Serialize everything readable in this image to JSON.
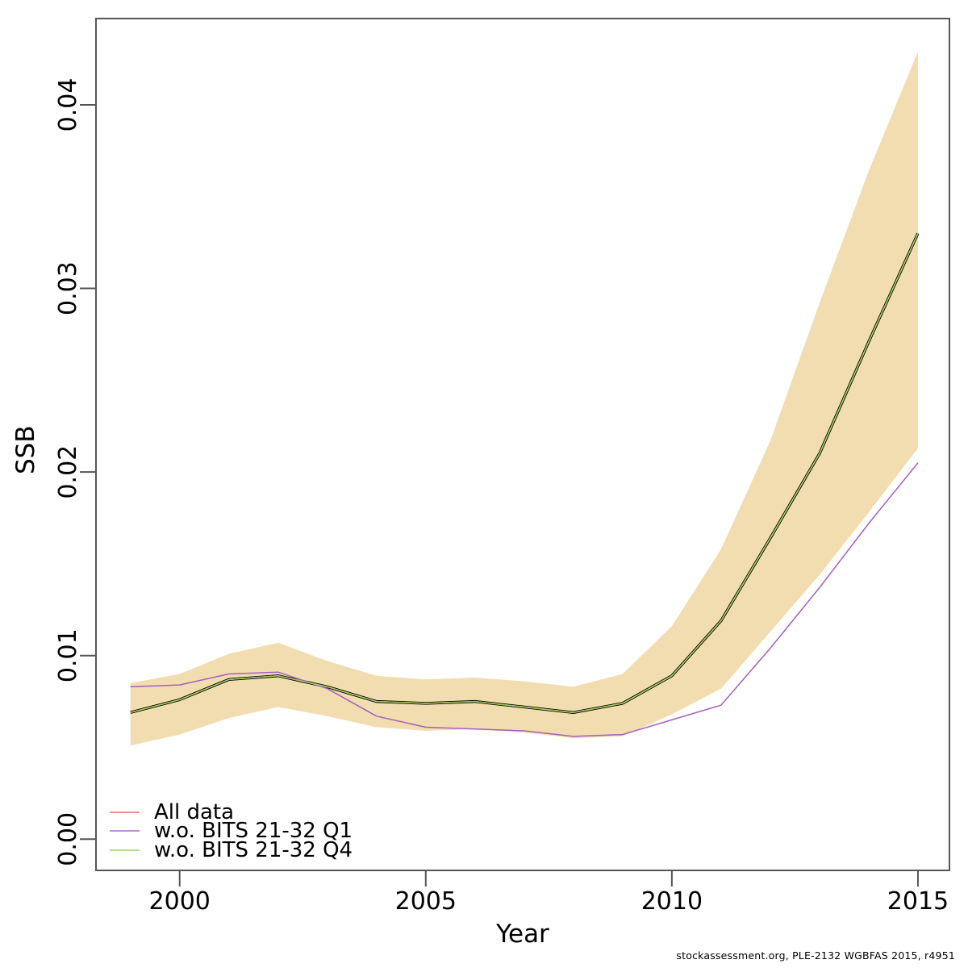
{
  "footer": "stockassessment.org, PLE-2132 WGBFAS 2015, r4951",
  "chart_data": {
    "type": "line",
    "title": "",
    "xlabel": "Year",
    "ylabel": "SSB",
    "grid": false,
    "legend_position": "bottom-left",
    "xlim": [
      1998.3,
      2015.64
    ],
    "ylim": [
      -0.0017,
      0.0447
    ],
    "x_ticks": [
      {
        "label": "2000",
        "value": 2000
      },
      {
        "label": "2005",
        "value": 2005
      },
      {
        "label": "2010",
        "value": 2010
      },
      {
        "label": "2015",
        "value": 2015
      }
    ],
    "y_ticks": [
      {
        "label": "0.00",
        "value": 0.0
      },
      {
        "label": "0.01",
        "value": 0.01
      },
      {
        "label": "0.02",
        "value": 0.02
      },
      {
        "label": "0.03",
        "value": 0.03
      },
      {
        "label": "0.04",
        "value": 0.04
      }
    ],
    "x": [
      1999,
      2000,
      2001,
      2002,
      2003,
      2004,
      2005,
      2006,
      2007,
      2008,
      2009,
      2010,
      2011,
      2012,
      2013,
      2014,
      2015
    ],
    "band": {
      "name": "confidence-band",
      "color": "#F2DDB0",
      "hi": [
        0.0085,
        0.009,
        0.0101,
        0.0107,
        0.0097,
        0.0089,
        0.0087,
        0.0088,
        0.0086,
        0.0083,
        0.009,
        0.0116,
        0.0158,
        0.0217,
        0.0292,
        0.0364,
        0.0429
      ],
      "lo": [
        0.0051,
        0.0057,
        0.0066,
        0.0072,
        0.0067,
        0.0061,
        0.0059,
        0.006,
        0.0058,
        0.0055,
        0.0056,
        0.0068,
        0.0082,
        0.0113,
        0.0144,
        0.0178,
        0.0213
      ]
    },
    "series": [
      {
        "name": "base-fit-line",
        "color": "#000000",
        "width": 3.4,
        "values": [
          0.0069,
          0.0076,
          0.0087,
          0.0089,
          0.0083,
          0.0075,
          0.0074,
          0.0075,
          0.0072,
          0.0069,
          0.0074,
          0.0089,
          0.0119,
          0.0164,
          0.021,
          0.0271,
          0.033
        ]
      },
      {
        "name": "all-data-line",
        "color": "#F08080",
        "width": 1.6,
        "values": [
          0.0069,
          0.0076,
          0.0087,
          0.0089,
          0.0083,
          0.0075,
          0.0074,
          0.0075,
          0.0072,
          0.0069,
          0.0074,
          0.0089,
          0.0119,
          0.0164,
          0.021,
          0.0271,
          0.033
        ]
      },
      {
        "name": "wo-bits-21-32-q1-line",
        "color": "#A55FC0",
        "width": 1.5,
        "values": [
          0.0083,
          0.0084,
          0.009,
          0.0091,
          0.0082,
          0.0067,
          0.0061,
          0.006,
          0.0059,
          0.0056,
          0.0057,
          0.0065,
          0.0073,
          0.0104,
          0.0137,
          0.0172,
          0.0205
        ]
      },
      {
        "name": "wo-bits-21-32-q4-line",
        "color": "#9CCB5E",
        "width": 1.6,
        "values": [
          0.0069,
          0.0076,
          0.0087,
          0.0089,
          0.0083,
          0.0075,
          0.0074,
          0.0075,
          0.0072,
          0.0069,
          0.0074,
          0.0089,
          0.0119,
          0.0164,
          0.021,
          0.0271,
          0.033
        ]
      }
    ],
    "legend": [
      {
        "label": "All data",
        "color": "#F4908A"
      },
      {
        "label": "w.o. BITS 21-32 Q1",
        "color": "#BF92D8"
      },
      {
        "label": "w.o. BITS 21-32 Q4",
        "color": "#B2DE8C"
      }
    ]
  }
}
